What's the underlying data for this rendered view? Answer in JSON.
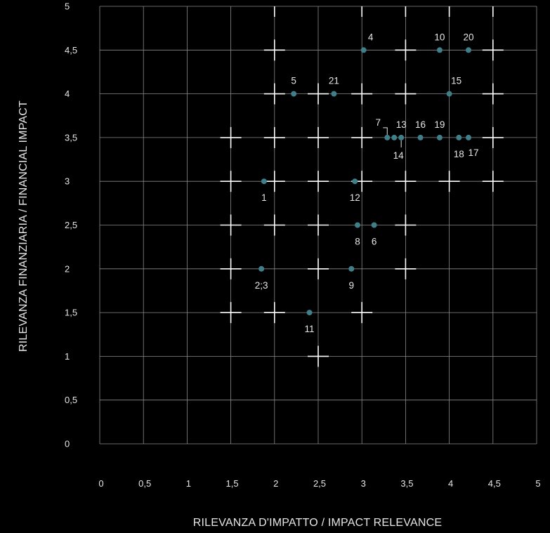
{
  "colors": {
    "background": "#000000",
    "grid": "#8a8a8a",
    "cross": "#ffffff",
    "point": "#3e7f89",
    "text": "#e6e6e6"
  },
  "chart_data": {
    "type": "scatter",
    "title": "",
    "xlabel": "RILEVANZA D'IMPATTO / IMPACT RELEVANCE",
    "ylabel": "RILEVANZA FINANZIARIA / FINANCIAL IMPACT",
    "xlim": [
      0,
      5
    ],
    "ylim": [
      0,
      5
    ],
    "grid": true,
    "x_ticks": [
      {
        "value": 0,
        "label": "0"
      },
      {
        "value": 0.5,
        "label": "0,5"
      },
      {
        "value": 1,
        "label": "1"
      },
      {
        "value": 1.5,
        "label": "1,5"
      },
      {
        "value": 2,
        "label": "2"
      },
      {
        "value": 2.5,
        "label": "2,5"
      },
      {
        "value": 3,
        "label": "3"
      },
      {
        "value": 3.5,
        "label": "3,5"
      },
      {
        "value": 4,
        "label": "4"
      },
      {
        "value": 4.5,
        "label": "4,5"
      },
      {
        "value": 5,
        "label": "5"
      }
    ],
    "y_ticks": [
      {
        "value": 0,
        "label": "0"
      },
      {
        "value": 0.5,
        "label": "0,5"
      },
      {
        "value": 1,
        "label": "1"
      },
      {
        "value": 1.5,
        "label": "1,5"
      },
      {
        "value": 2,
        "label": "2"
      },
      {
        "value": 2.5,
        "label": "2,5"
      },
      {
        "value": 3,
        "label": "3"
      },
      {
        "value": 3.5,
        "label": "3,5"
      },
      {
        "value": 4,
        "label": "4"
      },
      {
        "value": 4.5,
        "label": "4,5"
      },
      {
        "value": 5,
        "label": "5"
      }
    ],
    "points": [
      {
        "label": "1",
        "x": 1.88,
        "y": 3.0,
        "label_pos": "below"
      },
      {
        "label": "2;3",
        "x": 1.85,
        "y": 2.0,
        "label_pos": "below"
      },
      {
        "label": "4",
        "x": 3.02,
        "y": 4.5,
        "label_pos": "above-right"
      },
      {
        "label": "5",
        "x": 2.22,
        "y": 4.0,
        "label_pos": "above"
      },
      {
        "label": "6",
        "x": 3.14,
        "y": 2.5,
        "label_pos": "below"
      },
      {
        "label": "7",
        "x": 3.29,
        "y": 3.5,
        "label_pos": "leader-above-left"
      },
      {
        "label": "8",
        "x": 2.95,
        "y": 2.5,
        "label_pos": "below"
      },
      {
        "label": "9",
        "x": 2.88,
        "y": 2.0,
        "label_pos": "below"
      },
      {
        "label": "10",
        "x": 3.89,
        "y": 4.5,
        "label_pos": "above"
      },
      {
        "label": "11",
        "x": 2.4,
        "y": 1.5,
        "label_pos": "below"
      },
      {
        "label": "12",
        "x": 2.92,
        "y": 3.0,
        "label_pos": "below"
      },
      {
        "label": "13",
        "x": 3.37,
        "y": 3.5,
        "label_pos": "above-right"
      },
      {
        "label": "14",
        "x": 3.45,
        "y": 3.5,
        "label_pos": "leader-below"
      },
      {
        "label": "15",
        "x": 4.0,
        "y": 4.0,
        "label_pos": "above-right"
      },
      {
        "label": "16",
        "x": 3.67,
        "y": 3.5,
        "label_pos": "above"
      },
      {
        "label": "17",
        "x": 4.22,
        "y": 3.5,
        "label_pos": "below-right"
      },
      {
        "label": "18",
        "x": 4.11,
        "y": 3.5,
        "label_pos": "below"
      },
      {
        "label": "19",
        "x": 3.89,
        "y": 3.5,
        "label_pos": "above"
      },
      {
        "label": "20",
        "x": 4.22,
        "y": 4.5,
        "label_pos": "above"
      },
      {
        "label": "21",
        "x": 2.68,
        "y": 4.0,
        "label_pos": "above"
      }
    ],
    "cross_markers": [
      [
        2,
        4.5
      ],
      [
        3.5,
        4.5
      ],
      [
        4.5,
        4.5
      ],
      [
        2,
        4
      ],
      [
        2.5,
        4
      ],
      [
        3,
        4
      ],
      [
        3.5,
        4
      ],
      [
        4.5,
        4
      ],
      [
        1.5,
        3.5
      ],
      [
        2,
        3.5
      ],
      [
        2.5,
        3.5
      ],
      [
        3,
        3.5
      ],
      [
        4.5,
        3.5
      ],
      [
        1.5,
        3
      ],
      [
        2,
        3
      ],
      [
        2.5,
        3
      ],
      [
        3,
        3
      ],
      [
        3.5,
        3
      ],
      [
        4,
        3
      ],
      [
        4.5,
        3
      ],
      [
        1.5,
        2.5
      ],
      [
        2,
        2.5
      ],
      [
        2.5,
        2.5
      ],
      [
        3.5,
        2.5
      ],
      [
        1.5,
        2
      ],
      [
        2.5,
        2
      ],
      [
        3.5,
        2
      ],
      [
        1.5,
        1.5
      ],
      [
        2,
        1.5
      ],
      [
        3,
        1.5
      ],
      [
        2.5,
        1
      ]
    ],
    "vertical_accents": [
      [
        2,
        5
      ],
      [
        3,
        5
      ],
      [
        3.5,
        5
      ],
      [
        4,
        5
      ],
      [
        4.5,
        5
      ]
    ]
  }
}
